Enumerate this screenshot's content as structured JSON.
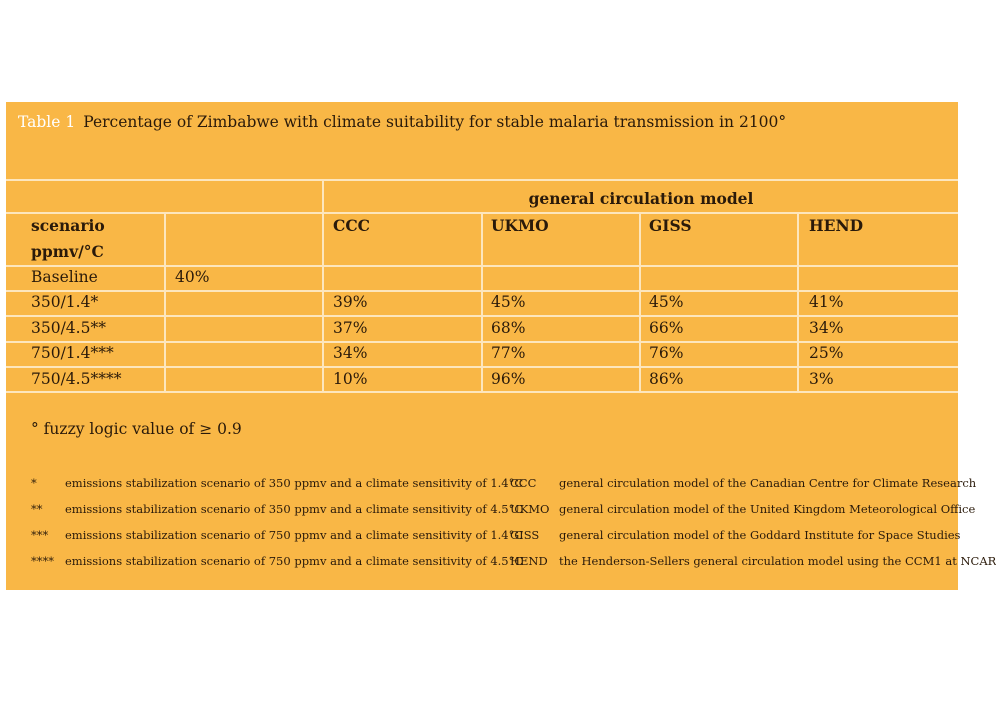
{
  "title": {
    "label": "Table 1",
    "text": "Percentage of Zimbabwe with climate suitability for stable malaria transmission in 2100°"
  },
  "header": {
    "group": "general circulation model",
    "scenario_line1": "scenario",
    "scenario_line2": "ppmv/°C",
    "models": [
      "CCC",
      "UKMO",
      "GISS",
      "HEND"
    ]
  },
  "rows": [
    {
      "scenario": "Baseline",
      "base": "40%",
      "values": [
        "",
        "",
        "",
        ""
      ]
    },
    {
      "scenario": "350/1.4*",
      "base": "",
      "values": [
        "39%",
        "45%",
        "45%",
        "41%"
      ]
    },
    {
      "scenario": "350/4.5**",
      "base": "",
      "values": [
        "37%",
        "68%",
        "66%",
        "34%"
      ]
    },
    {
      "scenario": "750/1.4***",
      "base": "",
      "values": [
        "34%",
        "77%",
        "76%",
        "25%"
      ]
    },
    {
      "scenario": "750/4.5****",
      "base": "",
      "values": [
        "10%",
        "96%",
        "86%",
        "3%"
      ]
    }
  ],
  "footnote_main": "° fuzzy logic value of ≥ 0.9",
  "footnotes": [
    {
      "mark": "*",
      "text": "emissions stabilization scenario of 350 ppmv and a climate sensitivity of 1.4°C",
      "abbr": "CCC",
      "abbr_text": "general circulation model of the Canadian Centre for Climate Research"
    },
    {
      "mark": "**",
      "text": "emissions stabilization scenario of 350 ppmv and a climate sensitivity of 4.5°C",
      "abbr": "UKMO",
      "abbr_text": "general circulation model of the United Kingdom Meteorological Office"
    },
    {
      "mark": "***",
      "text": "emissions stabilization scenario of 750 ppmv and a climate sensitivity of 1.4°C",
      "abbr": "GISS",
      "abbr_text": "general circulation model of the Goddard Institute for Space Studies"
    },
    {
      "mark": "****",
      "text": "emissions stabilization scenario of 750 ppmv and a climate sensitivity of 4.5°C",
      "abbr": "HEND",
      "abbr_text": "the Henderson-Sellers general circulation model using the CCM1 at NCAR"
    }
  ],
  "colors": {
    "panel": "#f9b746",
    "grid": "#fde6bd",
    "title_label": "#ffffff"
  }
}
